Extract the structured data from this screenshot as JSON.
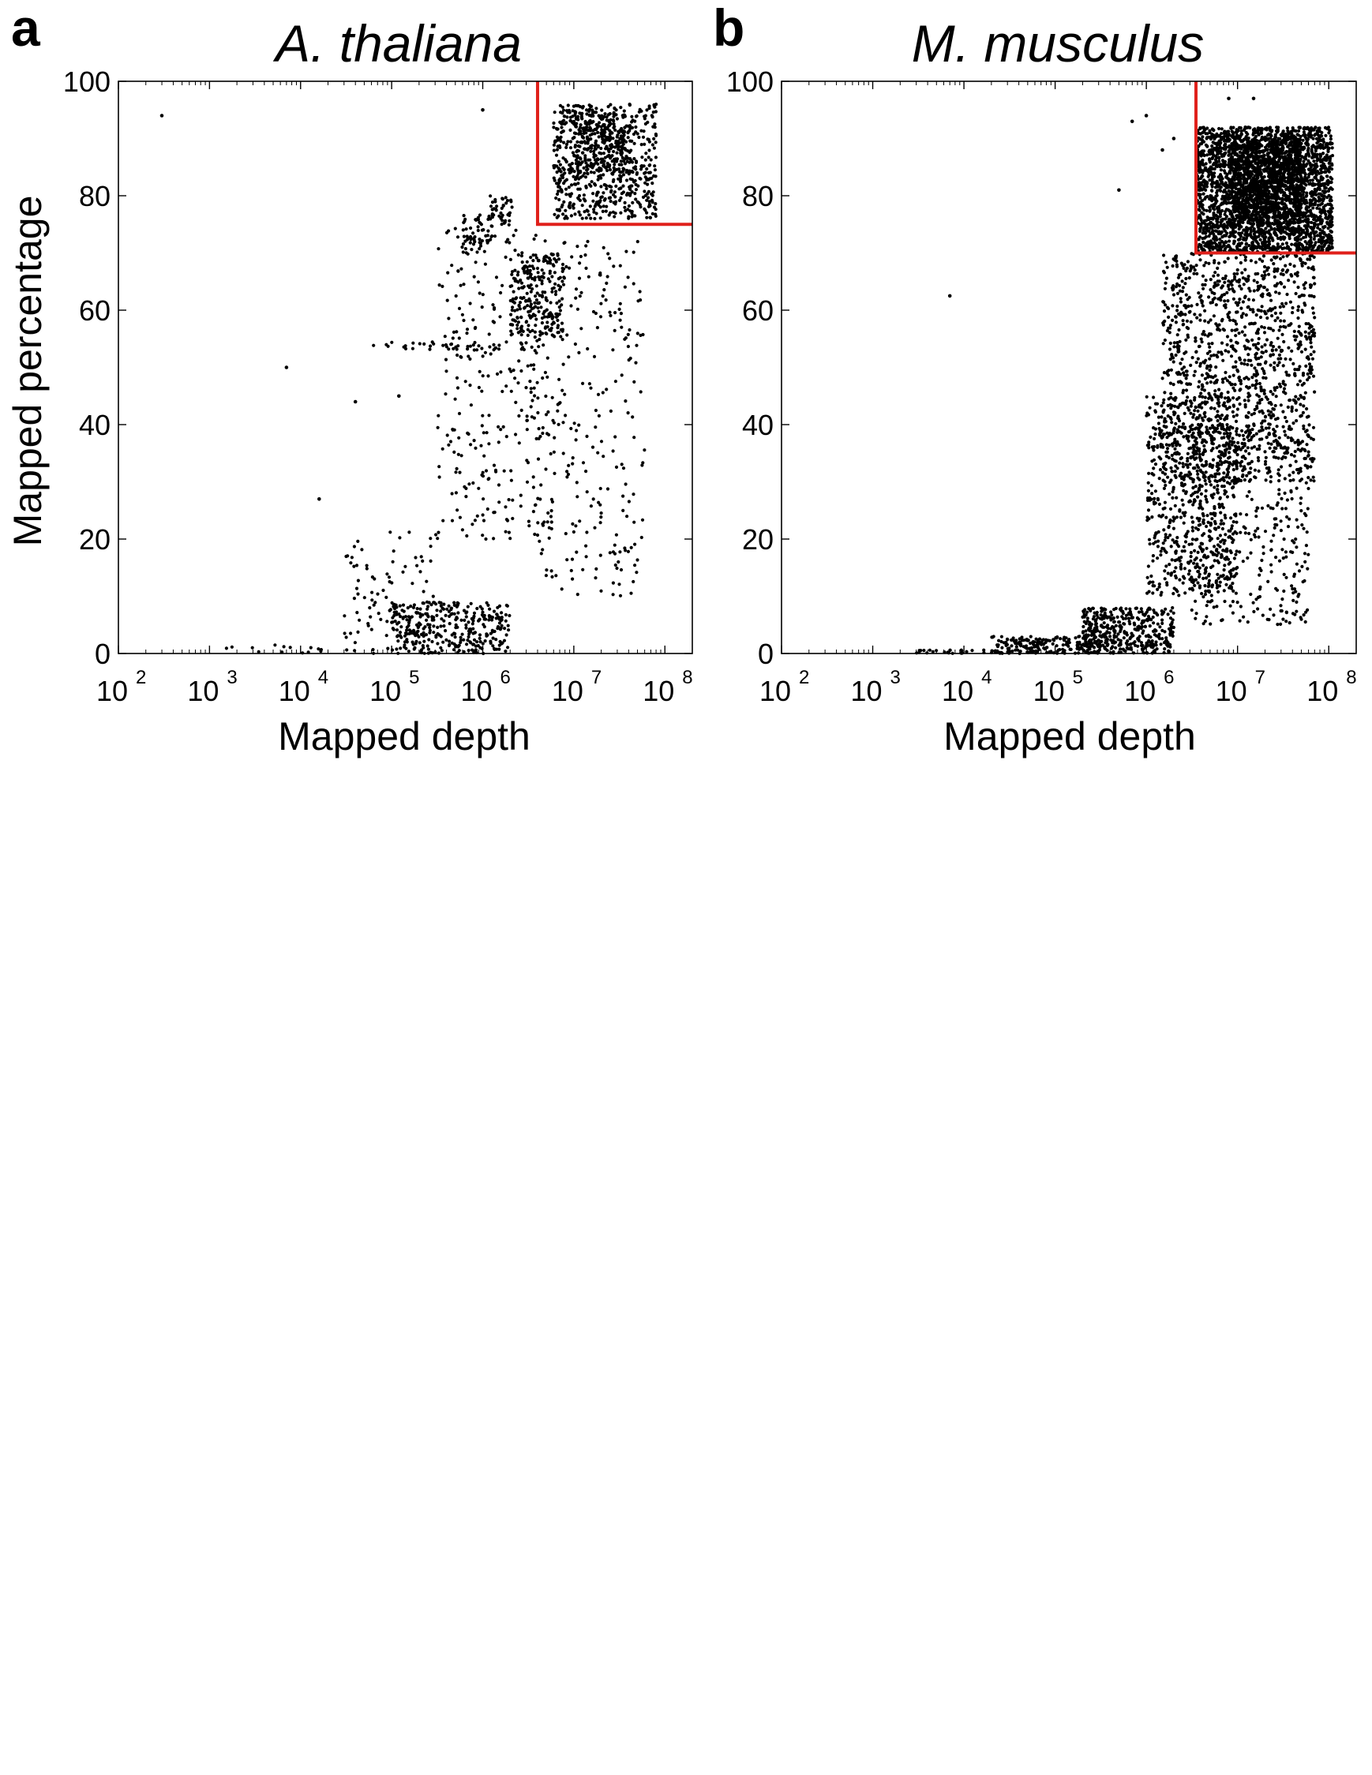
{
  "chart_data": [
    {
      "type": "scatter",
      "panel_label": "a",
      "title": "A. thaliana",
      "xlabel": "Mapped depth",
      "ylabel": "Mapped percentage",
      "xscale": "log",
      "xlim": [
        100,
        200000000
      ],
      "ylim": [
        0,
        100
      ],
      "x_ticks": [
        {
          "base": "10",
          "exp": "2",
          "value": 100
        },
        {
          "base": "10",
          "exp": "3",
          "value": 1000
        },
        {
          "base": "10",
          "exp": "4",
          "value": 10000
        },
        {
          "base": "10",
          "exp": "5",
          "value": 100000
        },
        {
          "base": "10",
          "exp": "6",
          "value": 1000000
        },
        {
          "base": "10",
          "exp": "7",
          "value": 10000000
        },
        {
          "base": "10",
          "exp": "8",
          "value": 100000000
        }
      ],
      "y_ticks": [
        "0",
        "20",
        "40",
        "60",
        "80",
        "100"
      ],
      "threshold": {
        "x": 4000000,
        "y": 75,
        "color": "#e0201b"
      },
      "point_color": "#000000",
      "clusters": [
        {
          "x_min": 6000000,
          "x_max": 80000000,
          "y_min": 76,
          "y_max": 96,
          "n": 650
        },
        {
          "x_min": 10000000,
          "x_max": 40000000,
          "y_min": 84,
          "y_max": 95,
          "n": 200
        },
        {
          "x_min": 2000000,
          "x_max": 8000000,
          "y_min": 55,
          "y_max": 70,
          "n": 220
        },
        {
          "x_min": 600000,
          "x_max": 1300000,
          "y_min": 70,
          "y_max": 77,
          "n": 60
        },
        {
          "x_min": 1200000,
          "x_max": 2200000,
          "y_min": 75,
          "y_max": 80,
          "n": 40
        },
        {
          "x_min": 300000,
          "x_max": 6000000,
          "y_min": 20,
          "y_max": 75,
          "n": 280
        },
        {
          "x_min": 3000000,
          "x_max": 60000000,
          "y_min": 10,
          "y_max": 72,
          "n": 260
        },
        {
          "x_min": 100000,
          "x_max": 2000000,
          "y_min": 0,
          "y_max": 9,
          "n": 330
        },
        {
          "x_min": 30000,
          "x_max": 300000,
          "y_min": 0,
          "y_max": 22,
          "n": 90
        },
        {
          "x_min": 60000,
          "x_max": 3000000,
          "y_min": 53,
          "y_max": 54.5,
          "n": 40
        },
        {
          "x_min": 1500,
          "x_max": 20000,
          "y_min": 0,
          "y_max": 1.5,
          "n": 14
        }
      ],
      "outliers": [
        {
          "x": 300,
          "y": 94
        },
        {
          "x": 7000,
          "y": 50
        },
        {
          "x": 16000,
          "y": 27
        },
        {
          "x": 40000,
          "y": 44
        },
        {
          "x": 120000,
          "y": 45
        },
        {
          "x": 1000000,
          "y": 95
        }
      ]
    },
    {
      "type": "scatter",
      "panel_label": "b",
      "title": "M. musculus",
      "xlabel": "Mapped depth",
      "ylabel": "",
      "xscale": "log",
      "xlim": [
        100,
        200000000
      ],
      "ylim": [
        0,
        100
      ],
      "x_ticks": [
        {
          "base": "10",
          "exp": "2",
          "value": 100
        },
        {
          "base": "10",
          "exp": "3",
          "value": 1000
        },
        {
          "base": "10",
          "exp": "4",
          "value": 10000
        },
        {
          "base": "10",
          "exp": "5",
          "value": 100000
        },
        {
          "base": "10",
          "exp": "6",
          "value": 1000000
        },
        {
          "base": "10",
          "exp": "7",
          "value": 10000000
        },
        {
          "base": "10",
          "exp": "8",
          "value": 100000000
        }
      ],
      "y_ticks": [
        "0",
        "20",
        "40",
        "60",
        "80",
        "100"
      ],
      "threshold": {
        "x": 3500000,
        "y": 70,
        "color": "#e0201b"
      },
      "point_color": "#000000",
      "clusters": [
        {
          "x_min": 3500000,
          "x_max": 110000000,
          "y_min": 70,
          "y_max": 92,
          "n": 2600
        },
        {
          "x_min": 8000000,
          "x_max": 50000000,
          "y_min": 75,
          "y_max": 90,
          "n": 900
        },
        {
          "x_min": 1500000,
          "x_max": 70000000,
          "y_min": 30,
          "y_max": 70,
          "n": 1300
        },
        {
          "x_min": 1000000,
          "x_max": 10000000,
          "y_min": 10,
          "y_max": 45,
          "n": 600
        },
        {
          "x_min": 3000000,
          "x_max": 60000000,
          "y_min": 5,
          "y_max": 40,
          "n": 400
        },
        {
          "x_min": 200000,
          "x_max": 2000000,
          "y_min": 0,
          "y_max": 8,
          "n": 400
        },
        {
          "x_min": 20000,
          "x_max": 300000,
          "y_min": 0,
          "y_max": 3,
          "n": 200
        },
        {
          "x_min": 3000,
          "x_max": 30000,
          "y_min": 0,
          "y_max": 0.6,
          "n": 30
        }
      ],
      "outliers": [
        {
          "x": 7000,
          "y": 62.5
        },
        {
          "x": 500000,
          "y": 81
        },
        {
          "x": 700000,
          "y": 93
        },
        {
          "x": 1000000,
          "y": 94
        },
        {
          "x": 1500000,
          "y": 88
        },
        {
          "x": 2000000,
          "y": 90
        },
        {
          "x": 8000000,
          "y": 97
        },
        {
          "x": 15000000,
          "y": 97
        }
      ]
    }
  ]
}
